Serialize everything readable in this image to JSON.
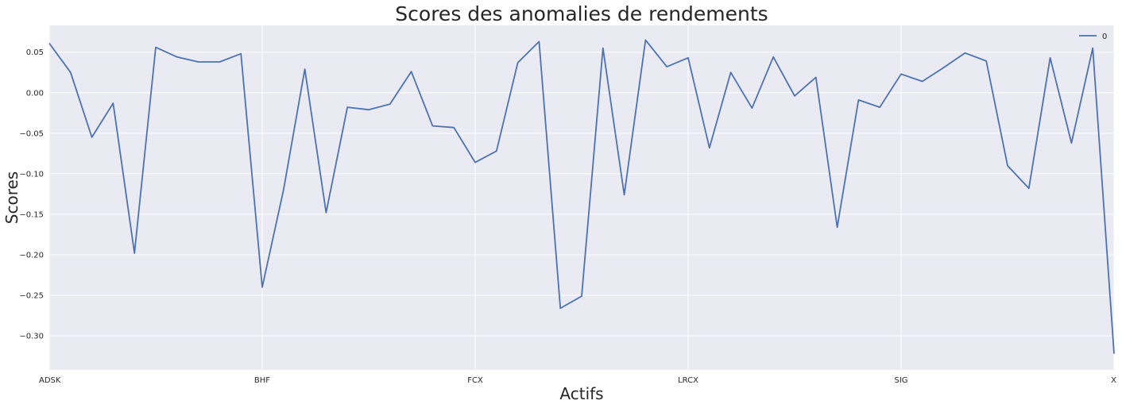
{
  "chart_data": {
    "type": "line",
    "title": "Scores des anomalies de rendements",
    "xlabel": "Actifs",
    "ylabel": "Scores",
    "x_tick_labels": [
      "ADSK",
      "BHF",
      "FCX",
      "LRCX",
      "SIG",
      "X"
    ],
    "y_ticks": [
      0.05,
      0.0,
      -0.05,
      -0.1,
      -0.15,
      -0.2,
      -0.25,
      -0.3
    ],
    "y_tick_labels": [
      "0.05",
      "0.00",
      "−0.05",
      "−0.10",
      "−0.15",
      "−0.20",
      "−0.25",
      "−0.30"
    ],
    "ylim": [
      -0.342,
      0.083
    ],
    "grid": true,
    "legend_position": "top-right",
    "series": [
      {
        "name": "0",
        "color": "#4c72b0",
        "values": [
          0.061,
          0.025,
          -0.055,
          -0.013,
          -0.198,
          0.056,
          0.044,
          0.038,
          0.038,
          0.048,
          -0.24,
          -0.12,
          0.029,
          -0.148,
          -0.018,
          -0.021,
          -0.014,
          0.026,
          -0.041,
          -0.043,
          -0.086,
          -0.072,
          0.037,
          0.063,
          -0.266,
          -0.251,
          0.055,
          -0.126,
          0.065,
          0.032,
          0.043,
          -0.068,
          0.025,
          -0.019,
          0.044,
          -0.004,
          0.019,
          -0.166,
          -0.009,
          -0.018,
          0.023,
          0.014,
          0.031,
          0.049,
          0.039,
          -0.09,
          -0.118,
          0.043,
          -0.062,
          0.055,
          -0.322
        ]
      }
    ]
  }
}
